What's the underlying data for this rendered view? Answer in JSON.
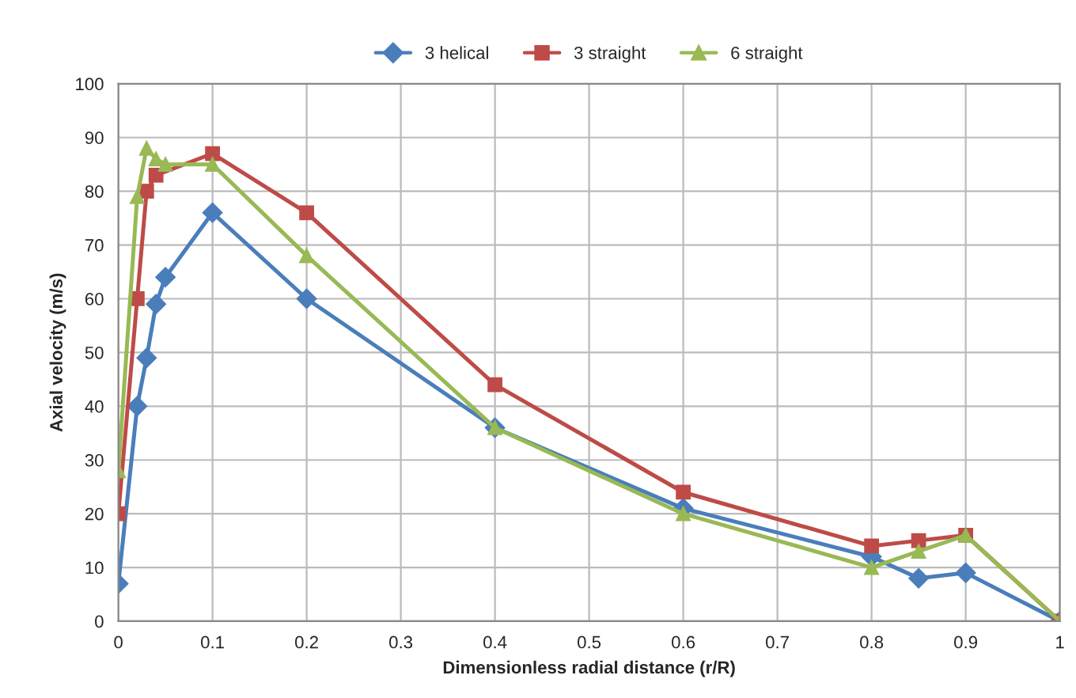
{
  "chart_data": {
    "type": "line",
    "xlabel": "Dimensionless radial distance (r/R)",
    "ylabel": "Axial velocity (m/s)",
    "xlim": [
      0,
      1
    ],
    "ylim": [
      0,
      100
    ],
    "xticks": [
      0,
      0.1,
      0.2,
      0.3,
      0.4,
      0.5,
      0.6,
      0.7,
      0.8,
      0.9,
      1
    ],
    "yticks": [
      0,
      10,
      20,
      30,
      40,
      50,
      60,
      70,
      80,
      90,
      100
    ],
    "grid": true,
    "legend": "top",
    "line_style": "solid",
    "series": [
      {
        "name": "3 helical",
        "color": "#4a7ebb",
        "marker": "diamond",
        "x": [
          0,
          0.02,
          0.03,
          0.04,
          0.05,
          0.1,
          0.2,
          0.4,
          0.6,
          0.8,
          0.85,
          0.9,
          1
        ],
        "values": [
          7,
          40,
          49,
          59,
          64,
          76,
          60,
          36,
          21,
          12,
          8,
          9,
          0
        ]
      },
      {
        "name": "3 straight",
        "color": "#be4b48",
        "marker": "square",
        "x": [
          0,
          0.02,
          0.03,
          0.04,
          0.1,
          0.2,
          0.4,
          0.6,
          0.8,
          0.85,
          0.9,
          1
        ],
        "values": [
          20,
          60,
          80,
          83,
          87,
          76,
          44,
          24,
          14,
          15,
          16,
          0
        ]
      },
      {
        "name": "6 straight",
        "color": "#98b954",
        "marker": "triangle",
        "x": [
          0,
          0.02,
          0.03,
          0.04,
          0.05,
          0.1,
          0.2,
          0.4,
          0.6,
          0.8,
          0.85,
          0.9,
          1
        ],
        "values": [
          28,
          79,
          88,
          86,
          85,
          85,
          68,
          36,
          20,
          10,
          13,
          16,
          0
        ]
      }
    ]
  }
}
